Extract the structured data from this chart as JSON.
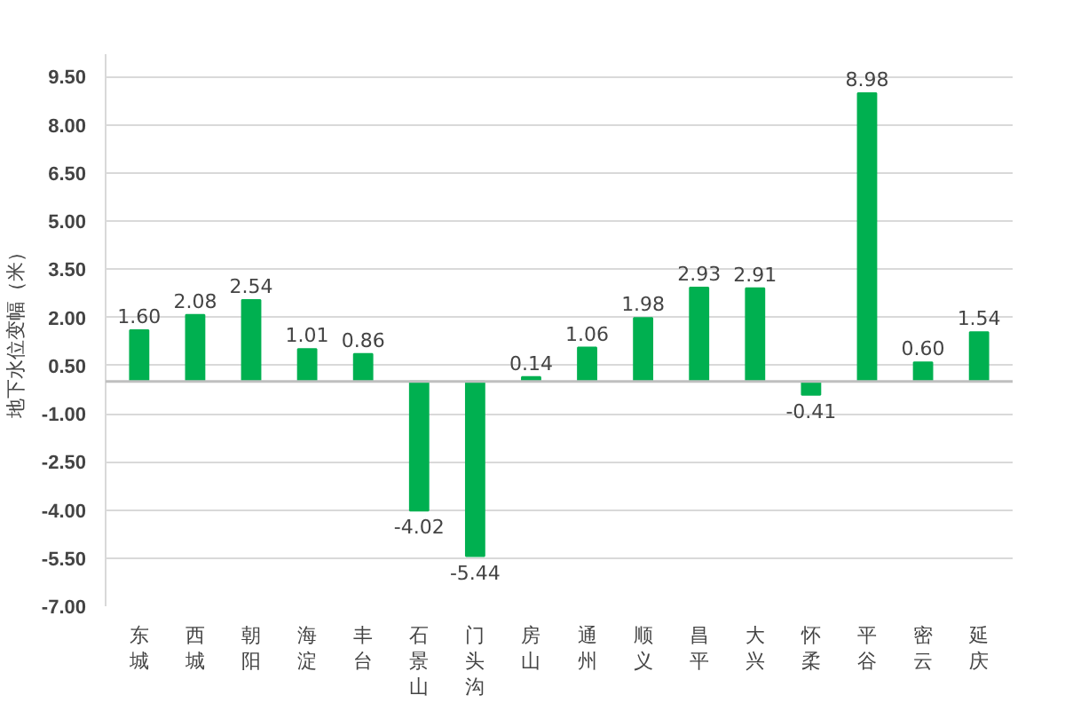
{
  "chart_data": {
    "type": "bar",
    "ylabel": "地下水位变幅（米）",
    "categories": [
      "东城",
      "西城",
      "朝阳",
      "海淀",
      "丰台",
      "石景山",
      "门头沟",
      "房山",
      "通州",
      "顺义",
      "昌平",
      "大兴",
      "怀柔",
      "平谷",
      "密云",
      "延庆"
    ],
    "values": [
      1.6,
      2.08,
      2.54,
      1.01,
      0.86,
      -4.02,
      -5.44,
      0.14,
      1.06,
      1.98,
      2.93,
      2.91,
      -0.41,
      8.98,
      0.6,
      1.54
    ],
    "color": "#00b050",
    "grid": "y",
    "value_labels": [
      "1.60",
      "2.08",
      "2.54",
      "1.01",
      "0.86",
      "-4.02",
      "-5.44",
      "0.14",
      "1.06",
      "1.98",
      "2.93",
      "2.91",
      "-0.41",
      "8.98",
      "0.60",
      "1.54"
    ],
    "ylim": [
      -7.0,
      10.2
    ],
    "yticks": [
      {
        "value": 9.5,
        "label": "9.50"
      },
      {
        "value": 8,
        "label": "8.00"
      },
      {
        "value": 6.5,
        "label": "6.50"
      },
      {
        "value": 5,
        "label": "5.00"
      },
      {
        "value": 3.5,
        "label": "3.50"
      },
      {
        "value": 2,
        "label": "2.00"
      },
      {
        "value": 0.5,
        "label": "0.50"
      },
      {
        "value": -1,
        "label": "-1.00"
      },
      {
        "value": -2.5,
        "label": "-2.50"
      },
      {
        "value": -4,
        "label": "-4.00"
      },
      {
        "value": -5.5,
        "label": "-5.50"
      },
      {
        "value": -7,
        "label": "-7.00"
      }
    ],
    "ref_lines": [
      {
        "axis": "y",
        "value": 0,
        "color": "#bfbfbf"
      }
    ]
  }
}
